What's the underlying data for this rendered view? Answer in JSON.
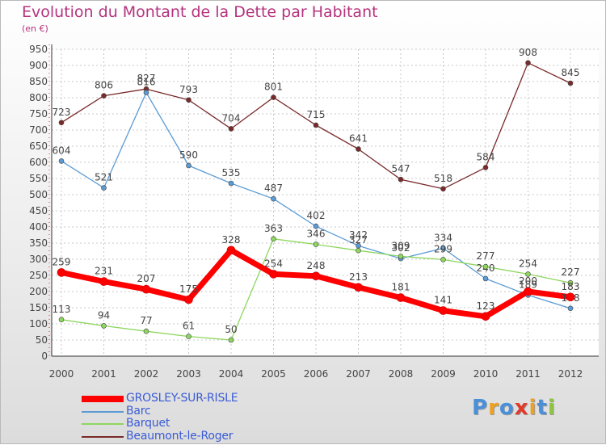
{
  "chart_data": {
    "type": "line",
    "title": "Evolution du Montant de la Dette par Habitant",
    "subtitle": "(en €)",
    "xlabel": "",
    "ylabel": "",
    "ylim": [
      0,
      950
    ],
    "yticks": [
      0,
      50,
      100,
      150,
      200,
      250,
      300,
      350,
      400,
      450,
      500,
      550,
      600,
      650,
      700,
      750,
      800,
      850,
      900,
      950
    ],
    "categories": [
      "2000",
      "2001",
      "2002",
      "2003",
      "2004",
      "2005",
      "2006",
      "2007",
      "2008",
      "2009",
      "2010",
      "2011",
      "2012"
    ],
    "grid": true,
    "legend_position": "bottom-left",
    "series": [
      {
        "name": "GROSLEY-SUR-RISLE",
        "color": "#ff0000",
        "values": [
          259,
          231,
          207,
          175,
          328,
          254,
          248,
          213,
          181,
          141,
          123,
          200,
          183
        ]
      },
      {
        "name": "Barc",
        "color": "#5b9bd5",
        "values": [
          604,
          521,
          816,
          590,
          535,
          487,
          402,
          342,
          302,
          334,
          240,
          189,
          148
        ]
      },
      {
        "name": "Barquet",
        "color": "#8ed65f",
        "values": [
          113,
          94,
          77,
          61,
          50,
          363,
          346,
          327,
          309,
          299,
          277,
          254,
          227
        ]
      },
      {
        "name": "Beaumont-le-Roger",
        "color": "#7a2a2a",
        "values": [
          723,
          806,
          827,
          793,
          704,
          801,
          715,
          641,
          547,
          518,
          584,
          908,
          845
        ]
      }
    ]
  },
  "logo": {
    "letters": [
      "P",
      "r",
      "o",
      "x",
      "i",
      "t",
      "i"
    ],
    "colors": [
      "#4a90d9",
      "#f0a020",
      "#4a90d9",
      "#e03a2a",
      "#f0a020",
      "#4a90d9",
      "#8cc63f"
    ]
  }
}
